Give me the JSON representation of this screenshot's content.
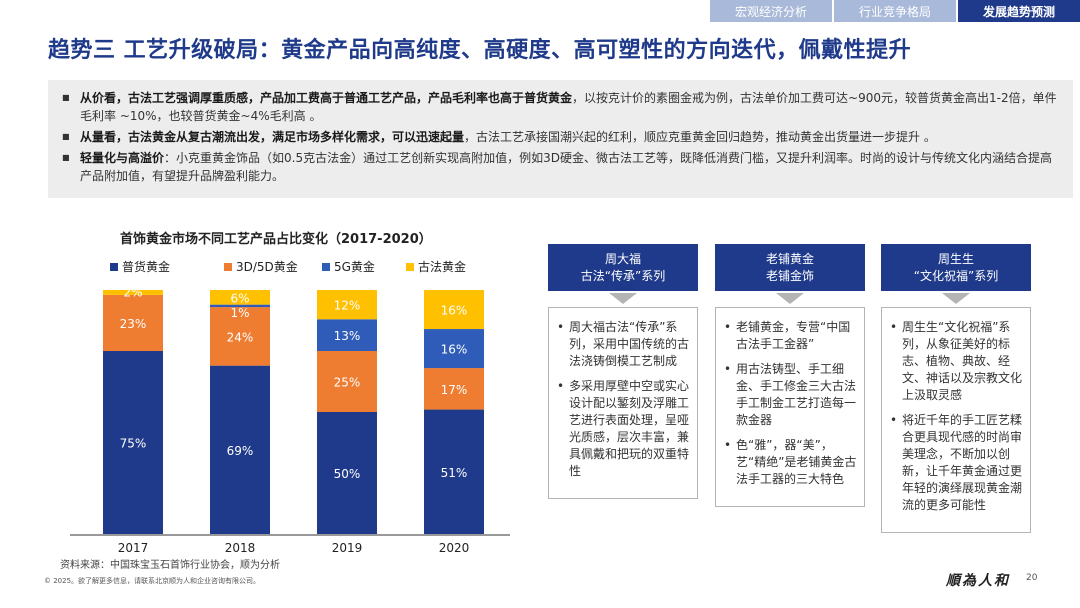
{
  "tabs": [
    "宏观经济分析",
    "行业竞争格局",
    "发展趋势预测"
  ],
  "title": "趋势三 工艺升级破局：黄金产品向高纯度、高硬度、高可塑性的方向迭代，佩戴性提升",
  "bullets": [
    {
      "bold": "从价看，古法工艺强调厚重质感，产品加工费高于普通工艺产品，产品毛利率也高于普货黄金",
      "text": "，以按克计价的素圈金戒为例，古法单价加工费可达~900元，较普货黄金高出1-2倍，单件毛利率 ~10%，也较普货黄金~4%毛利高 。"
    },
    {
      "bold": "从量看，古法黄金从复古潮流出发，满足市场多样化需求，可以迅速起量",
      "text": "，古法工艺承接国潮兴起的红利，顺应克重黄金回归趋势，推动黄金出货量进一步提升 。"
    },
    {
      "bold": "轻量化与高溢价",
      "text": "：小克重黄金饰品（如0.5克古法金）通过工艺创新实现高附加值，例如3D硬金、微古法工艺等，既降低消费门槛，又提升利润率。时尚的设计与传统文化内涵结合提高产品附加值，有望提升品牌盈利能力。"
    }
  ],
  "chart_data": {
    "type": "bar",
    "stacked": true,
    "percent": true,
    "title": "首饰黄金市场不同工艺产品占比变化（2017-2020）",
    "categories": [
      "2017",
      "2018",
      "2019",
      "2020"
    ],
    "series": [
      {
        "name": "普货黄金",
        "color": "#1f3a8a",
        "values": [
          75,
          69,
          50,
          51
        ]
      },
      {
        "name": "3D/5D黄金",
        "color": "#ee7d31",
        "values": [
          23,
          24,
          25,
          17
        ]
      },
      {
        "name": "5G黄金",
        "color": "#2e5cb8",
        "values": [
          0,
          1,
          13,
          16
        ]
      },
      {
        "name": "古法黄金",
        "color": "#ffc000",
        "values": [
          2,
          6,
          12,
          16
        ]
      }
    ],
    "labels": [
      [
        "75%",
        "69%",
        "50%",
        "51%"
      ],
      [
        "23%",
        "24%",
        "25%",
        "17%"
      ],
      [
        "",
        "1%",
        "13%",
        "16%"
      ],
      [
        "2%",
        "6%",
        "12%",
        "16%"
      ]
    ],
    "ylim": [
      0,
      100
    ],
    "legend": "top"
  },
  "source": "资料来源：中国珠宝玉石首饰行业协会，顺为分析",
  "copyright": "© 2025。欲了解更多信息，请联系北京顺为人和企业咨询有限公司。",
  "logo": "順為人和",
  "page_number": "20",
  "cards": [
    {
      "head1": "周大福",
      "head2": "古法“传承”系列",
      "items": [
        "周大福古法“传承”系列，采用中国传统的古法浇铸倒模工艺制成",
        "多采用厚壁中空或实心设计配以錾刻及浮雕工艺进行表面处理，呈哑光质感，层次丰富，兼具佩戴和把玩的双重特性"
      ]
    },
    {
      "head1": "老铺黄金",
      "head2": "老铺金饰",
      "items": [
        "老铺黄金，专营“中国古法手工金器”",
        "用古法铸型、手工细金、手工修金三大古法手工制金工艺打造每一款金器",
        "色“雅”，器“美”，艺“精绝”是老铺黄金古法手工器的三大特色"
      ]
    },
    {
      "head1": "周生生",
      "head2": "“文化祝福”系列",
      "items": [
        "周生生“文化祝福”系列，从象征美好的标志、植物、典故、经文、神话以及宗教文化上汲取灵感",
        "将近千年的手工匠艺糅合更具现代感的时尚审美理念，不断加以创新，让千年黄金通过更年轻的演绎展现黄金潮流的更多可能性"
      ]
    }
  ]
}
